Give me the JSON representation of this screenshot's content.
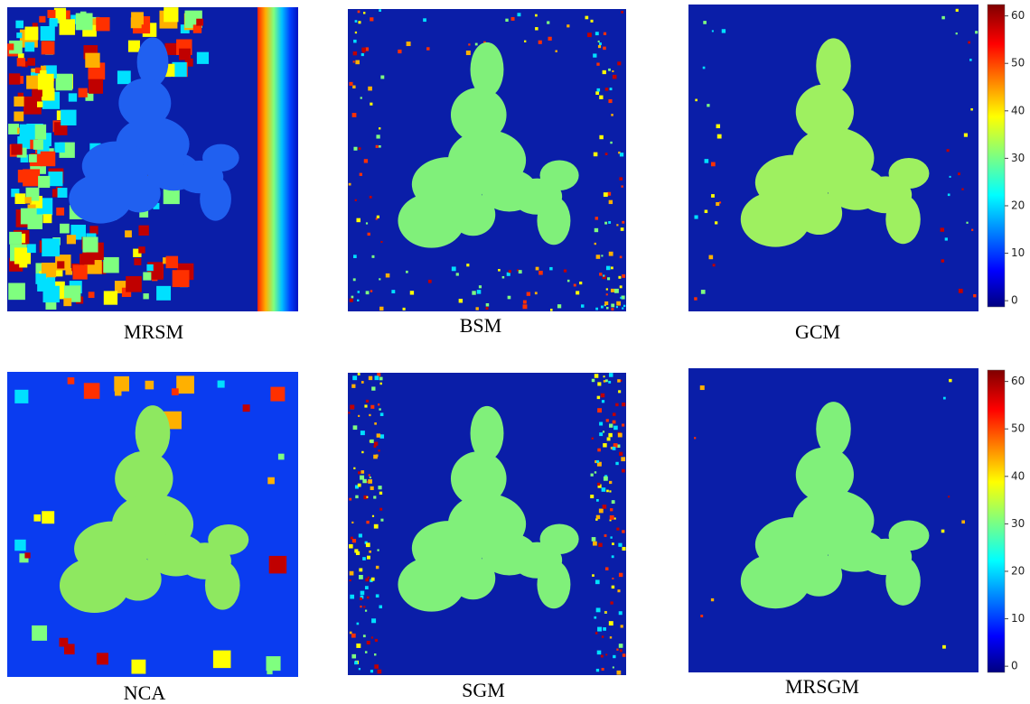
{
  "panels": [
    {
      "label": "MRSM"
    },
    {
      "label": "BSM"
    },
    {
      "label": "GCM"
    },
    {
      "label": "NCA"
    },
    {
      "label": "SGM"
    },
    {
      "label": "MRSGM"
    }
  ],
  "colorbars": [
    {
      "ylim": [
        -1.3,
        62.4
      ],
      "yticks": [
        0,
        10,
        20,
        30,
        40,
        50,
        60
      ]
    },
    {
      "ylim": [
        -1.3,
        62.4
      ],
      "yticks": [
        0,
        10,
        20,
        30,
        40,
        50,
        60
      ]
    }
  ]
}
